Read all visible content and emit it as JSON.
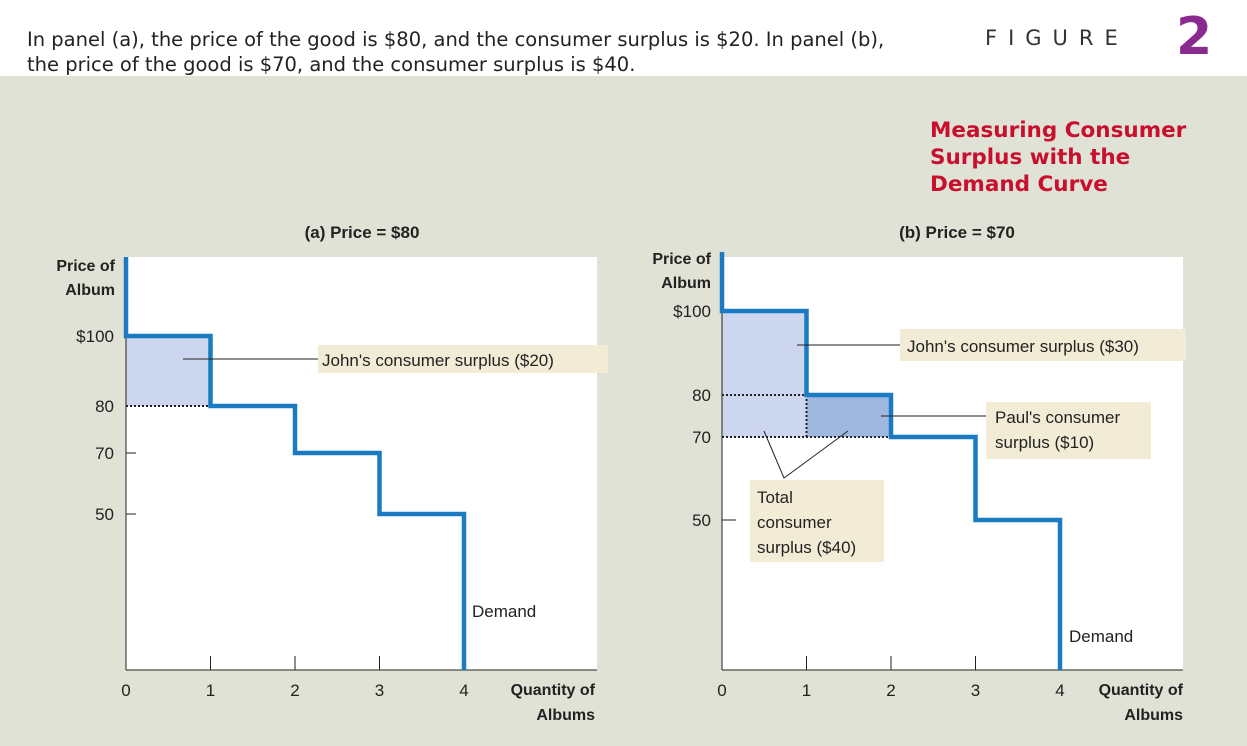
{
  "caption": "In panel (a), the price of the good is $80, and the consumer surplus is $20. In panel (b), the price of the good is $70, and the consumer surplus is $40.",
  "figure": {
    "word": "FIGURE",
    "number": "2",
    "title": "Measuring Consumer Surplus with the Demand Curve"
  },
  "colors": {
    "demand": "#1a7ac2",
    "surface_light": "#ccd6ef",
    "surface_dark": "#9fb8e0",
    "label_bg": "#f2ecd6",
    "title_red": "#c8102e",
    "figure_purple": "#8b2a8e"
  },
  "chart_data": [
    {
      "type": "step",
      "panel_title": "(a) Price = $80",
      "ylabel_lines": [
        "Price of",
        "Album"
      ],
      "xlabel_lines": [
        "Quantity of",
        "Albums"
      ],
      "y_ticks": [
        "$100",
        "80",
        "70",
        "50"
      ],
      "y_tick_values": [
        100,
        80,
        70,
        50
      ],
      "x_ticks": [
        "0",
        "1",
        "2",
        "3",
        "4"
      ],
      "x_tick_values": [
        0,
        1,
        2,
        3,
        4
      ],
      "demand": {
        "name": "Demand",
        "steps": [
          {
            "x_from": 0,
            "x_to": 1,
            "price": 100
          },
          {
            "x_from": 1,
            "x_to": 2,
            "price": 80
          },
          {
            "x_from": 2,
            "x_to": 3,
            "price": 70
          },
          {
            "x_from": 3,
            "x_to": 4,
            "price": 50
          }
        ]
      },
      "price_line": 80,
      "surplus_regions": [
        {
          "x_from": 0,
          "x_to": 1,
          "price_from": 80,
          "price_to": 100,
          "tone": "light"
        }
      ],
      "annotations": [
        {
          "text": "John's consumer surplus ($20)"
        }
      ]
    },
    {
      "type": "step",
      "panel_title": "(b) Price = $70",
      "ylabel_lines": [
        "Price of",
        "Album"
      ],
      "xlabel_lines": [
        "Quantity of",
        "Albums"
      ],
      "y_ticks": [
        "$100",
        "80",
        "70",
        "50"
      ],
      "y_tick_values": [
        100,
        80,
        70,
        50
      ],
      "x_ticks": [
        "0",
        "1",
        "2",
        "3",
        "4"
      ],
      "x_tick_values": [
        0,
        1,
        2,
        3,
        4
      ],
      "demand": {
        "name": "Demand",
        "steps": [
          {
            "x_from": 0,
            "x_to": 1,
            "price": 100
          },
          {
            "x_from": 1,
            "x_to": 2,
            "price": 80
          },
          {
            "x_from": 2,
            "x_to": 3,
            "price": 70
          },
          {
            "x_from": 3,
            "x_to": 4,
            "price": 50
          }
        ]
      },
      "price_line": 70,
      "surplus_regions": [
        {
          "x_from": 0,
          "x_to": 1,
          "price_from": 70,
          "price_to": 100,
          "tone": "light"
        },
        {
          "x_from": 1,
          "x_to": 2,
          "price_from": 70,
          "price_to": 80,
          "tone": "dark"
        }
      ],
      "annotations": [
        {
          "text": "John's consumer surplus ($30)"
        },
        {
          "text_lines": [
            "Paul's consumer",
            "surplus ($10)"
          ]
        },
        {
          "text_lines": [
            "Total",
            "consumer",
            "surplus ($40)"
          ]
        }
      ]
    }
  ]
}
